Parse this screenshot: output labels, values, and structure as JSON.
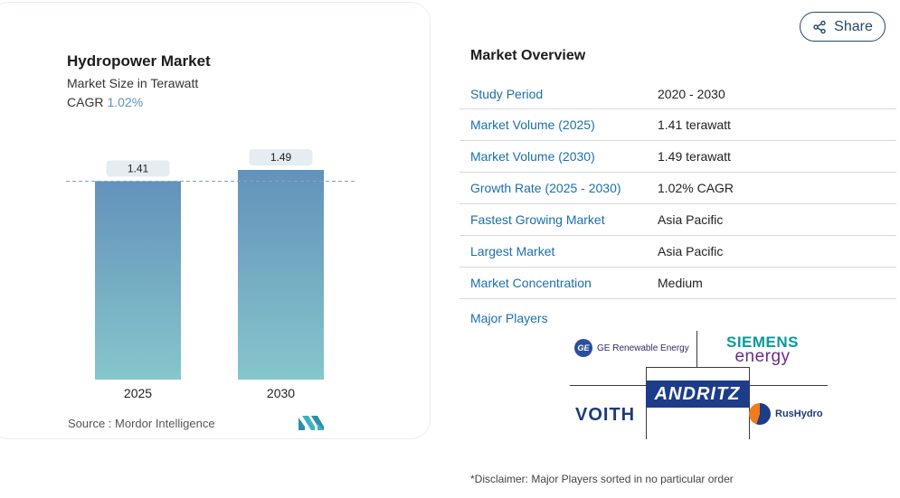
{
  "chart_panel": {
    "title": "Hydropower Market",
    "subtitle": "Market Size in Terawatt",
    "cagr_label": "CAGR",
    "cagr_value": "1.02%",
    "source": "Source :  Mordor Intelligence",
    "logo_text": "MN"
  },
  "chart_data": {
    "type": "bar",
    "categories": [
      "2025",
      "2030"
    ],
    "values": [
      1.41,
      1.49
    ],
    "value_labels": [
      "1.41",
      "1.49"
    ],
    "title": "Hydropower Market",
    "xlabel": "",
    "ylabel": "",
    "colors": {
      "bar_top": "#6392bb",
      "bar_bottom": "#86c6cc",
      "label_bg": "#e4edf1",
      "dashed": "#7fa4c6"
    }
  },
  "share": {
    "label": "Share",
    "icon": "share-icon"
  },
  "overview": {
    "title": "Market Overview",
    "rows": [
      {
        "key": "Study Period",
        "value": "2020 - 2030"
      },
      {
        "key": "Market Volume (2025)",
        "value": "1.41 terawatt"
      },
      {
        "key": "Market Volume (2030)",
        "value": "1.49 terawatt"
      },
      {
        "key": "Growth Rate (2025 - 2030)",
        "value": "1.02% CAGR"
      },
      {
        "key": "Fastest Growing Market",
        "value": "Asia Pacific"
      },
      {
        "key": "Largest Market",
        "value": "Asia Pacific"
      },
      {
        "key": "Market Concentration",
        "value": "Medium"
      }
    ]
  },
  "players": {
    "title": "Major Players",
    "ge": {
      "mark": "GE",
      "text": "GE Renewable Energy"
    },
    "siemens": {
      "line1": "SIEMENS",
      "line2": "energy"
    },
    "andritz": "ANDRITZ",
    "voith": "VOITH",
    "rushydro": "RusHydro"
  },
  "disclaimer": "*Disclaimer: Major Players sorted in no particular order"
}
